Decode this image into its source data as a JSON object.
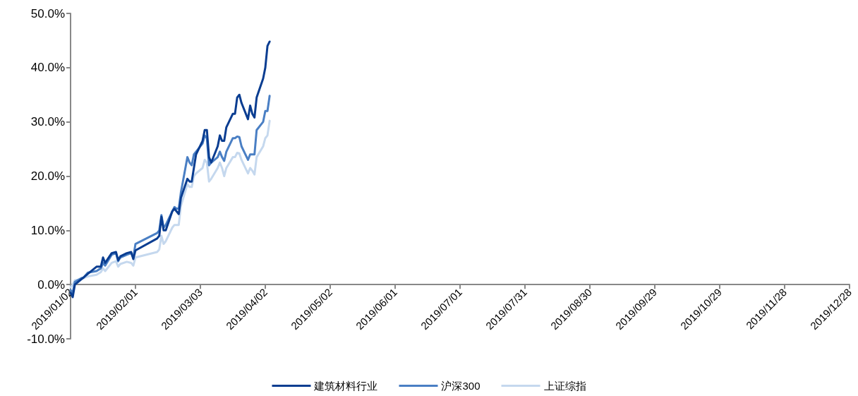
{
  "chart_data": {
    "type": "line",
    "legend": "bottom",
    "marker": "none",
    "line_style": "solid",
    "x": [
      "2019-01-02",
      "2019-01-03",
      "2019-01-04",
      "2019-01-07",
      "2019-01-08",
      "2019-01-10",
      "2019-01-14",
      "2019-01-16",
      "2019-01-17",
      "2019-01-18",
      "2019-01-21",
      "2019-01-23",
      "2019-01-24",
      "2019-01-25",
      "2019-01-28",
      "2019-01-30",
      "2019-01-31",
      "2019-02-01",
      "2019-02-11",
      "2019-02-12",
      "2019-02-13",
      "2019-02-14",
      "2019-02-15",
      "2019-02-18",
      "2019-02-19",
      "2019-02-20",
      "2019-02-21",
      "2019-02-22",
      "2019-02-25",
      "2019-02-26",
      "2019-02-27",
      "2019-02-28",
      "2019-03-01",
      "2019-03-04",
      "2019-03-05",
      "2019-03-06",
      "2019-03-07",
      "2019-03-08",
      "2019-03-11",
      "2019-03-12",
      "2019-03-13",
      "2019-03-14",
      "2019-03-15",
      "2019-03-18",
      "2019-03-19",
      "2019-03-20",
      "2019-03-21",
      "2019-03-22",
      "2019-03-25",
      "2019-03-26",
      "2019-03-27",
      "2019-03-28",
      "2019-03-29",
      "2019-04-01",
      "2019-04-02",
      "2019-04-03",
      "2019-04-04"
    ],
    "series": [
      {
        "name": "建筑材料行业",
        "color": "#0a3d91",
        "values": [
          -1.5,
          -2.3,
          0.0,
          1.0,
          1.3,
          2.0,
          3.3,
          3.3,
          5.0,
          4.0,
          5.8,
          6.0,
          4.5,
          5.2,
          5.8,
          6.0,
          4.7,
          6.3,
          8.5,
          9.0,
          12.5,
          10.0,
          10.0,
          13.5,
          14.0,
          13.5,
          13.0,
          16.0,
          19.5,
          19.0,
          19.0,
          21.5,
          24.0,
          26.5,
          28.5,
          28.5,
          23.5,
          22.5,
          25.5,
          27.5,
          26.5,
          26.5,
          29.0,
          31.5,
          31.5,
          34.5,
          35.0,
          33.5,
          30.5,
          33.0,
          31.5,
          30.8,
          34.5,
          38.0,
          40.0,
          44.0,
          44.8
        ]
      },
      {
        "name": "沪深300",
        "color": "#4a7fc4",
        "values": [
          -1.0,
          -1.5,
          0.5,
          1.2,
          1.3,
          2.2,
          2.5,
          3.0,
          4.0,
          3.5,
          5.5,
          5.8,
          4.3,
          5.0,
          5.5,
          5.8,
          5.0,
          7.5,
          9.5,
          10.0,
          12.8,
          10.5,
          11.0,
          13.5,
          14.3,
          14.0,
          14.0,
          17.0,
          23.5,
          22.5,
          22.0,
          24.0,
          24.5,
          26.0,
          27.5,
          27.0,
          22.0,
          22.5,
          23.5,
          24.5,
          23.5,
          22.8,
          24.5,
          27.0,
          27.0,
          27.3,
          27.2,
          25.5,
          23.0,
          24.0,
          24.0,
          24.0,
          28.5,
          30.0,
          32.0,
          32.0,
          34.8
        ]
      },
      {
        "name": "上证综指",
        "color": "#c5d8ee",
        "values": [
          -0.5,
          0.0,
          0.8,
          1.0,
          1.2,
          1.5,
          1.8,
          2.3,
          3.0,
          2.5,
          4.0,
          4.3,
          3.3,
          3.8,
          4.2,
          4.0,
          3.5,
          5.0,
          6.0,
          6.5,
          9.0,
          7.5,
          8.0,
          10.5,
          11.0,
          11.0,
          11.0,
          14.5,
          18.5,
          18.0,
          18.0,
          20.0,
          20.5,
          21.5,
          23.0,
          22.5,
          19.0,
          19.5,
          21.5,
          22.5,
          21.5,
          20.0,
          21.5,
          23.5,
          23.5,
          24.3,
          24.2,
          23.0,
          20.5,
          21.5,
          21.0,
          20.3,
          23.5,
          25.5,
          27.0,
          27.5,
          30.2
        ]
      }
    ],
    "ylim": [
      -10,
      50
    ],
    "yticks": [
      {
        "value": -10,
        "label": "-10.0%"
      },
      {
        "value": 0,
        "label": "0.0%"
      },
      {
        "value": 10,
        "label": "10.0%"
      },
      {
        "value": 20,
        "label": "20.0%"
      },
      {
        "value": 30,
        "label": "30.0%"
      },
      {
        "value": 40,
        "label": "40.0%"
      },
      {
        "value": 50,
        "label": "50.0%"
      }
    ],
    "xlim": [
      "2019-01-02",
      "2019-12-28"
    ],
    "xticks": [
      {
        "value": "2019-01-02",
        "label": "2019/01/02"
      },
      {
        "value": "2019-02-01",
        "label": "2019/02/01"
      },
      {
        "value": "2019-03-03",
        "label": "2019/03/03"
      },
      {
        "value": "2019-04-02",
        "label": "2019/04/02"
      },
      {
        "value": "2019-05-02",
        "label": "2019/05/02"
      },
      {
        "value": "2019-06-01",
        "label": "2019/06/01"
      },
      {
        "value": "2019-07-01",
        "label": "2019/07/01"
      },
      {
        "value": "2019-07-31",
        "label": "2019/07/31"
      },
      {
        "value": "2019-08-30",
        "label": "2019/08/30"
      },
      {
        "value": "2019-09-29",
        "label": "2019/09/29"
      },
      {
        "value": "2019-10-29",
        "label": "2019/10/29"
      },
      {
        "value": "2019-11-28",
        "label": "2019/11/28"
      },
      {
        "value": "2019-12-28",
        "label": "2019/12/28"
      }
    ]
  }
}
